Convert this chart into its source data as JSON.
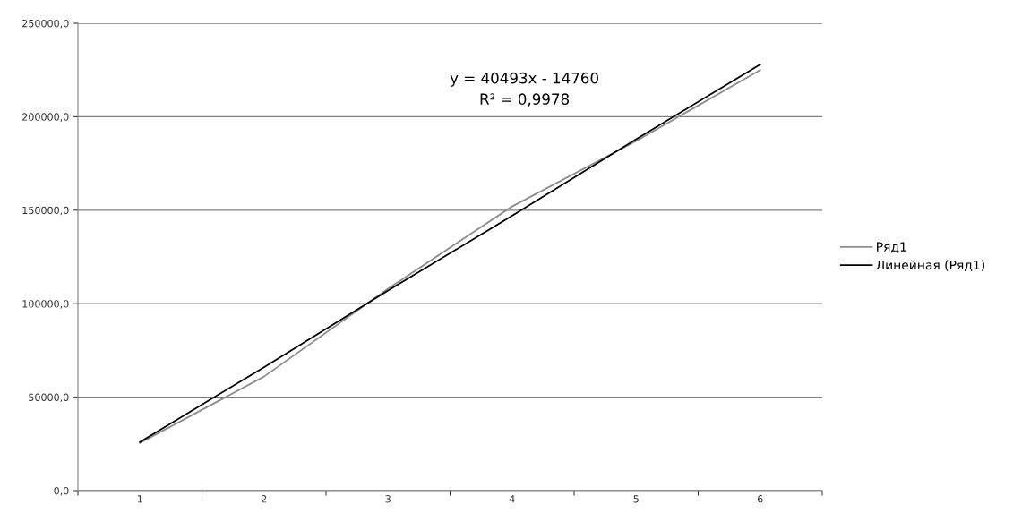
{
  "chart_data": {
    "type": "line",
    "categories": [
      "1",
      "2",
      "3",
      "4",
      "5",
      "6"
    ],
    "series": [
      {
        "name": "Ряд1",
        "color": "#8c8c8c",
        "values": [
          25500,
          61000,
          108000,
          152000,
          187000,
          225000
        ]
      },
      {
        "name": "Линейная (Ряд1)",
        "color": "#000000",
        "values": [
          26000,
          66000,
          107000,
          147000,
          188000,
          228000
        ]
      }
    ],
    "ylim": [
      0,
      250000
    ],
    "yticks": [
      {
        "value": 0,
        "label": "0,0"
      },
      {
        "value": 50000,
        "label": "50000,0"
      },
      {
        "value": 100000,
        "label": "100000,0"
      },
      {
        "value": 150000,
        "label": "150000,0"
      },
      {
        "value": 200000,
        "label": "200000,0"
      },
      {
        "value": 250000,
        "label": "250000,0"
      }
    ],
    "annotations": [
      "y = 40493x - 14760",
      "R² = 0,9978"
    ],
    "grid": "y",
    "legend": "right"
  }
}
